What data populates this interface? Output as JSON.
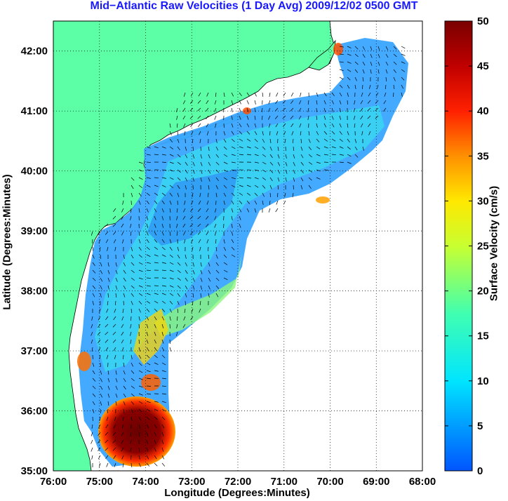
{
  "title": "Mid−Atlantic Raw Velocities (1 Day Avg) 2009/12/02 0500 GMT",
  "xlabel": "Longitude (Degrees:Minutes)",
  "ylabel": "Latitude (Degrees:Minutes)",
  "colorbar_label": "Surface Velocity (cm/s)",
  "x_ticks": [
    "76:00",
    "75:00",
    "74:00",
    "73:00",
    "72:00",
    "71:00",
    "70:00",
    "69:00",
    "68:00"
  ],
  "y_ticks": [
    "42:00",
    "41:00",
    "40:00",
    "39:00",
    "38:00",
    "37:00",
    "36:00",
    "35:00"
  ],
  "colorbar_ticks": [
    "50",
    "45",
    "40",
    "35",
    "30",
    "25",
    "20",
    "15",
    "10",
    "5",
    "0"
  ],
  "colors": {
    "land": "#5dffa6",
    "title": "#1a1aff",
    "low_speed": "#2f80ff",
    "high_speed": "#800000"
  },
  "chart_data": {
    "type": "heatmap",
    "title": "Mid−Atlantic Raw Velocities (1 Day Avg) 2009/12/02 0500 GMT",
    "xlabel": "Longitude (Degrees:Minutes)",
    "ylabel": "Latitude (Degrees:Minutes)",
    "xlim": [
      -76,
      -68
    ],
    "ylim": [
      35,
      42.5
    ],
    "clim": [
      0,
      50
    ],
    "colorbar_label": "Surface Velocity (cm/s)",
    "grid": true
  }
}
